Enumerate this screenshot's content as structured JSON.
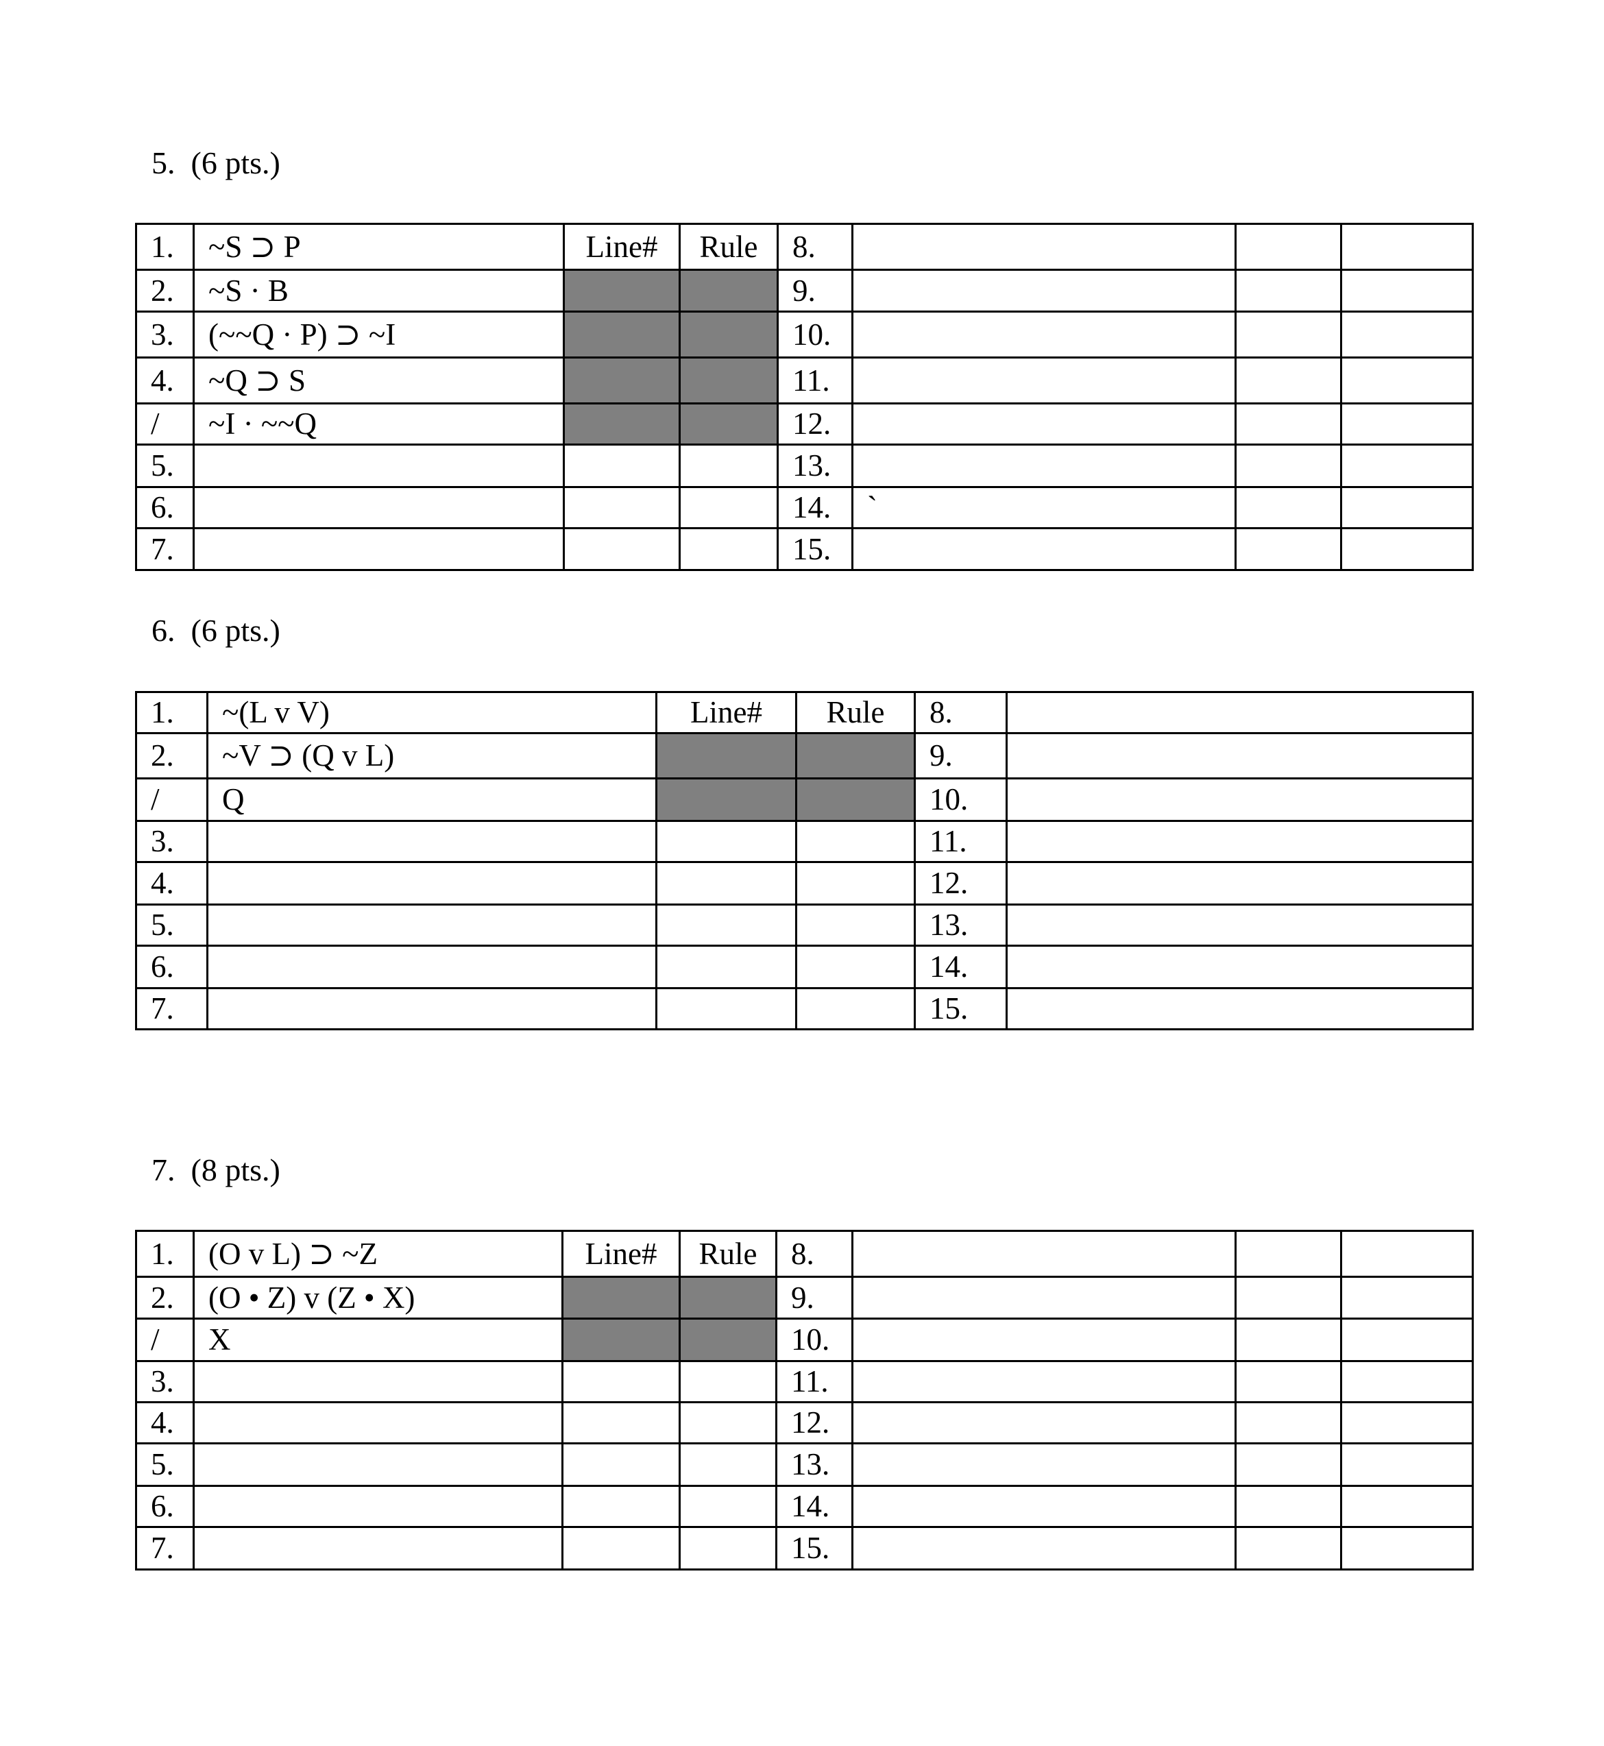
{
  "problems": [
    {
      "heading": "5.  (6 pts.)",
      "line_header": "Line#",
      "rule_header": "Rule",
      "extra_columns": 2,
      "rows": [
        {
          "n": "1.",
          "formula": "~S ⊃ P",
          "shaded": false,
          "header": true,
          "n2": "8.",
          "formula2": ""
        },
        {
          "n": "2.",
          "formula": "~S · B",
          "shaded": true,
          "n2": "9.",
          "formula2": ""
        },
        {
          "n": "3.",
          "formula": "(~~Q · P) ⊃ ~I",
          "shaded": true,
          "n2": "10.",
          "formula2": ""
        },
        {
          "n": "4.",
          "formula": "~Q ⊃ S",
          "shaded": true,
          "n2": "11.",
          "formula2": ""
        },
        {
          "n": "/",
          "formula": "~I · ~~Q",
          "shaded": true,
          "n2": "12.",
          "formula2": ""
        },
        {
          "n": "5.",
          "formula": "",
          "shaded": false,
          "n2": "13.",
          "formula2": ""
        },
        {
          "n": "6.",
          "formula": "",
          "shaded": false,
          "n2": "14.",
          "formula2": "`"
        },
        {
          "n": "7.",
          "formula": "",
          "shaded": false,
          "n2": "15.",
          "formula2": ""
        }
      ]
    },
    {
      "heading": "6.  (6 pts.)",
      "line_header": "Line#",
      "rule_header": "Rule",
      "extra_columns": 0,
      "rows": [
        {
          "n": "1.",
          "formula": "~(L v V)",
          "shaded": false,
          "header": true,
          "n2": "8.",
          "formula2": ""
        },
        {
          "n": "2.",
          "formula": "~V ⊃ (Q v L)",
          "shaded": true,
          "n2": "9.",
          "formula2": ""
        },
        {
          "n": "/",
          "formula": "Q",
          "shaded": true,
          "n2": "10.",
          "formula2": ""
        },
        {
          "n": "3.",
          "formula": "",
          "shaded": false,
          "n2": "11.",
          "formula2": ""
        },
        {
          "n": "4.",
          "formula": "",
          "shaded": false,
          "n2": "12.",
          "formula2": ""
        },
        {
          "n": "5.",
          "formula": "",
          "shaded": false,
          "n2": "13.",
          "formula2": ""
        },
        {
          "n": "6.",
          "formula": "",
          "shaded": false,
          "n2": "14.",
          "formula2": ""
        },
        {
          "n": "7.",
          "formula": "",
          "shaded": false,
          "n2": "15.",
          "formula2": ""
        }
      ]
    },
    {
      "heading": "7.  (8 pts.)",
      "line_header": "Line#",
      "rule_header": "Rule",
      "extra_columns": 2,
      "rows": [
        {
          "n": "1.",
          "formula": "(O v L) ⊃ ~Z",
          "shaded": false,
          "header": true,
          "n2": "8.",
          "formula2": ""
        },
        {
          "n": "2.",
          "formula": "(O • Z) v (Z • X)",
          "shaded": true,
          "n2": "9.",
          "formula2": ""
        },
        {
          "n": "/",
          "formula": "X",
          "shaded": true,
          "n2": "10.",
          "formula2": ""
        },
        {
          "n": "3.",
          "formula": "",
          "shaded": false,
          "n2": "11.",
          "formula2": ""
        },
        {
          "n": "4.",
          "formula": "",
          "shaded": false,
          "n2": "12.",
          "formula2": ""
        },
        {
          "n": "5.",
          "formula": "",
          "shaded": false,
          "n2": "13.",
          "formula2": ""
        },
        {
          "n": "6.",
          "formula": "",
          "shaded": false,
          "n2": "14.",
          "formula2": ""
        },
        {
          "n": "7.",
          "formula": "",
          "shaded": false,
          "n2": "15.",
          "formula2": ""
        }
      ]
    }
  ],
  "colors": {
    "shaded": "#808080",
    "border": "#000000"
  }
}
